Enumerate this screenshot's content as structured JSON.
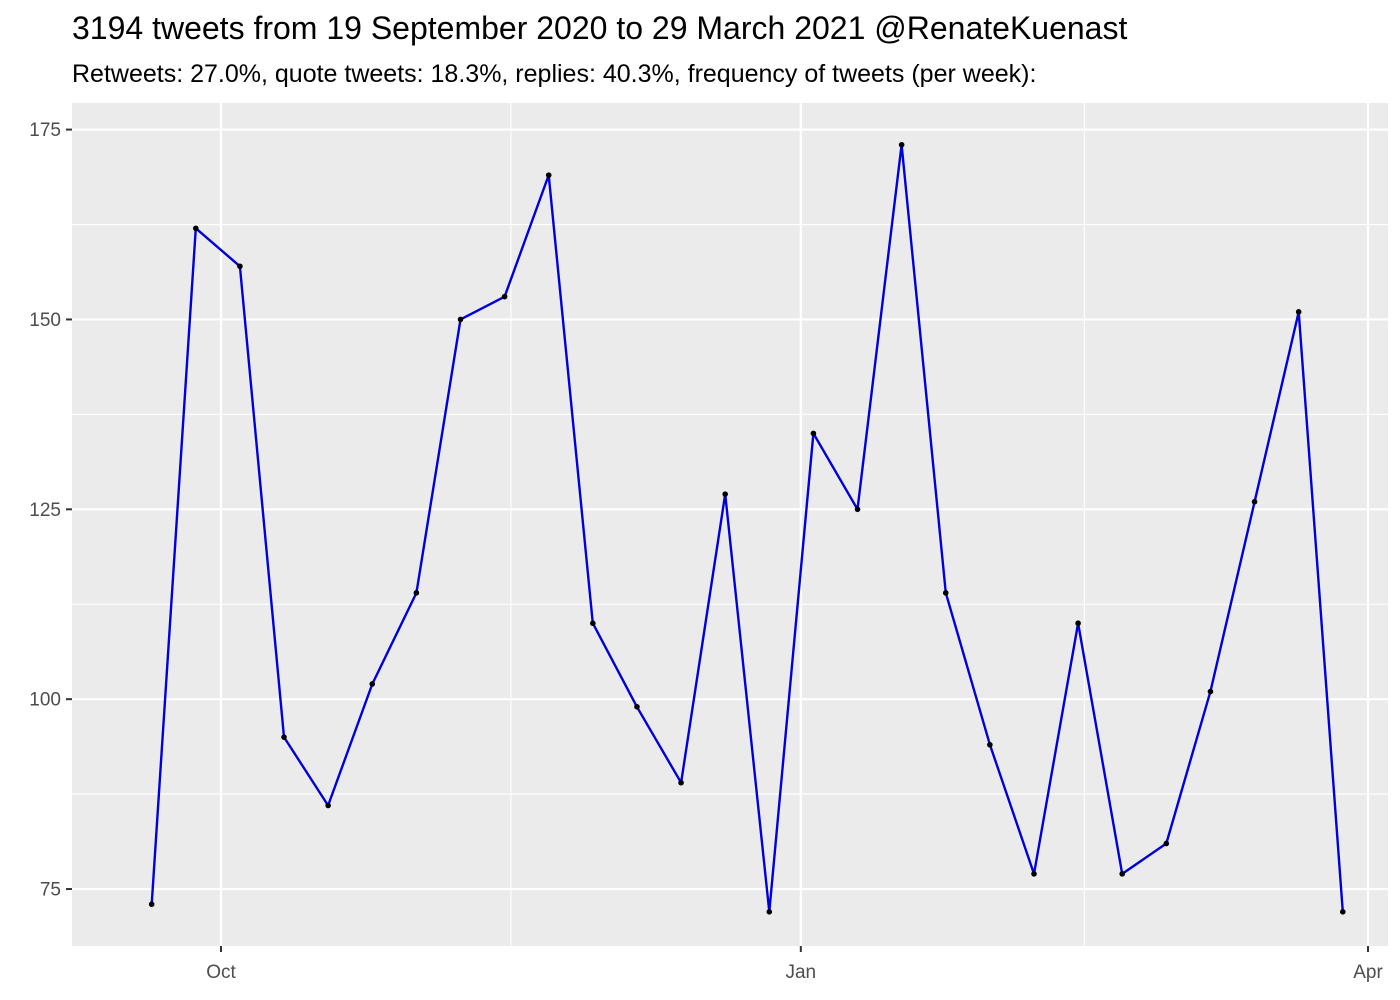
{
  "chart_data": {
    "type": "line",
    "title": "3194 tweets from 19 September 2020 to 29 March 2021 @RenateKuenast",
    "subtitle": "Retweets: 27.0%, quote tweets: 18.3%, replies: 40.3%, frequency of tweets (per week):",
    "xlabel": "",
    "ylabel": "",
    "x_ticks": [
      {
        "label": "Oct",
        "date": "2020-10-01"
      },
      {
        "label": "Jan",
        "date": "2021-01-01"
      },
      {
        "label": "Apr",
        "date": "2021-04-01"
      }
    ],
    "y_ticks": [
      75,
      100,
      125,
      150,
      175
    ],
    "xlim": [
      "2020-09-14",
      "2021-04-01"
    ],
    "ylim": [
      67.5,
      178.5
    ],
    "grid": true,
    "series": [
      {
        "line_color": "#0000dd",
        "point_color": "#000000",
        "x": [
          "2020-09-20",
          "2020-09-27",
          "2020-10-04",
          "2020-10-11",
          "2020-10-18",
          "2020-10-25",
          "2020-11-01",
          "2020-11-08",
          "2020-11-15",
          "2020-11-22",
          "2020-11-29",
          "2020-12-06",
          "2020-12-13",
          "2020-12-20",
          "2020-12-27",
          "2021-01-03",
          "2021-01-10",
          "2021-01-17",
          "2021-01-24",
          "2021-01-31",
          "2021-02-07",
          "2021-02-14",
          "2021-02-21",
          "2021-02-28",
          "2021-03-07",
          "2021-03-14",
          "2021-03-21",
          "2021-03-28"
        ],
        "values": [
          73,
          162,
          157,
          95,
          86,
          102,
          114,
          150,
          153,
          169,
          110,
          99,
          89,
          127,
          72,
          135,
          125,
          173,
          114,
          94,
          77,
          110,
          77,
          81,
          101,
          126,
          151,
          72
        ]
      }
    ]
  },
  "colors": {
    "panel_background": "#ebebeb",
    "grid_major": "#ffffff",
    "tick_text": "#4d4d4d"
  }
}
